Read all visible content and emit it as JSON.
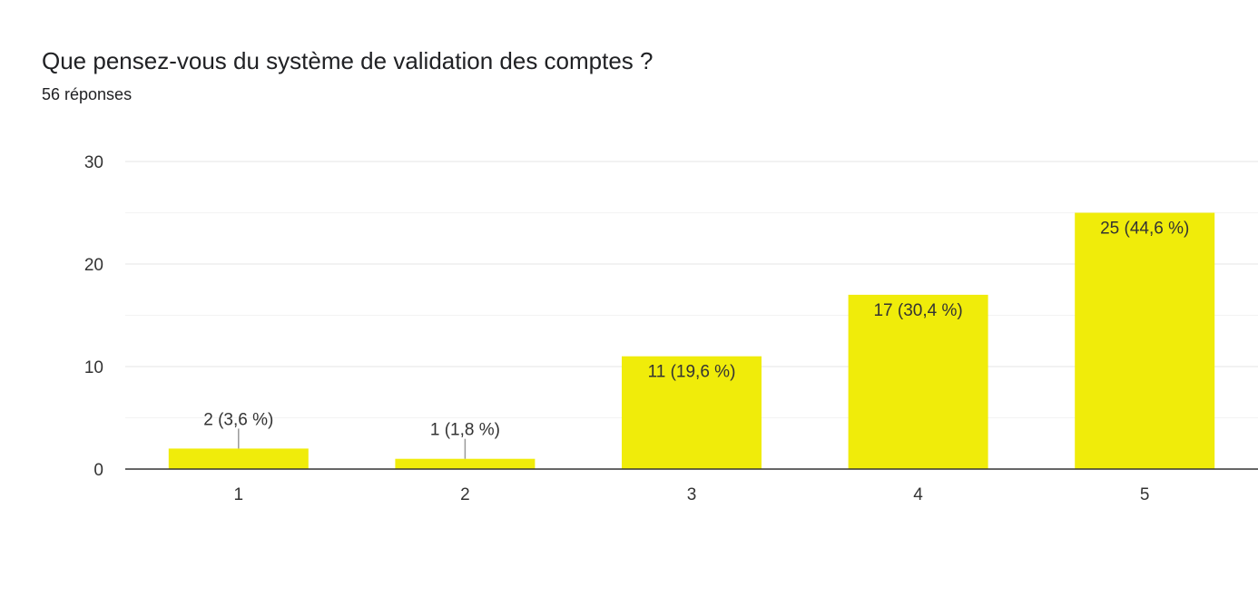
{
  "question": {
    "title": "Que pensez-vous du système de validation des comptes ?",
    "responses": "56 réponses"
  },
  "chart_data": {
    "type": "bar",
    "categories": [
      "1",
      "2",
      "3",
      "4",
      "5"
    ],
    "values": [
      2,
      1,
      11,
      17,
      25
    ],
    "data_labels": [
      "2 (3,6 %)",
      "1 (1,8 %)",
      "11 (19,6 %)",
      "17 (30,4 %)",
      "25 (44,6 %)"
    ],
    "y_ticks": [
      "0",
      "10",
      "20",
      "30"
    ],
    "ylim": [
      0,
      30
    ],
    "grid": true,
    "bar_color": "#f0ec0a",
    "title": "Que pensez-vous du système de validation des comptes ?",
    "xlabel": "",
    "ylabel": ""
  }
}
